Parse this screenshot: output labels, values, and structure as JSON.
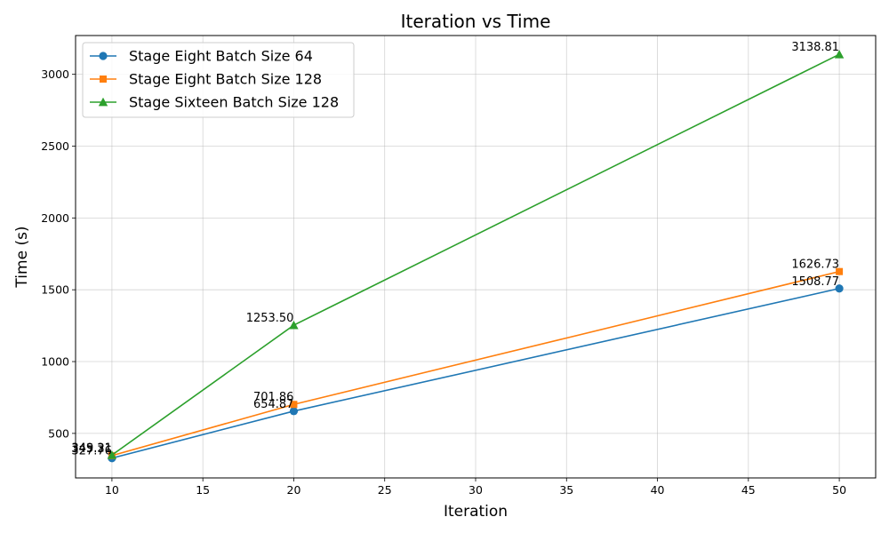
{
  "chart_data": {
    "type": "line",
    "title": "Iteration vs Time",
    "xlabel": "Iteration",
    "ylabel": "Time (s)",
    "x": [
      10,
      20,
      50
    ],
    "xlim": [
      8,
      52
    ],
    "ylim": [
      190,
      3270
    ],
    "xticks": [
      10,
      15,
      20,
      25,
      30,
      35,
      40,
      45,
      50
    ],
    "yticks": [
      500,
      1000,
      1500,
      2000,
      2500,
      3000
    ],
    "grid": true,
    "legend_position": "top-left",
    "series": [
      {
        "name": "Stage Eight Batch Size 64",
        "values": [
          327.76,
          654.87,
          1508.77
        ],
        "labels": [
          "327.76",
          "654.87",
          "1508.77"
        ],
        "color": "#1f77b4",
        "marker": "circle"
      },
      {
        "name": "Stage Eight Batch Size 128",
        "values": [
          345.31,
          701.86,
          1626.73
        ],
        "labels": [
          "345.31",
          "701.86",
          "1626.73"
        ],
        "color": "#ff7f0e",
        "marker": "square"
      },
      {
        "name": "Stage Sixteen Batch Size 128",
        "values": [
          349.21,
          1253.5,
          3138.81
        ],
        "labels": [
          "349.21",
          "1253.50",
          "3138.81"
        ],
        "color": "#2ca02c",
        "marker": "triangle"
      }
    ]
  }
}
